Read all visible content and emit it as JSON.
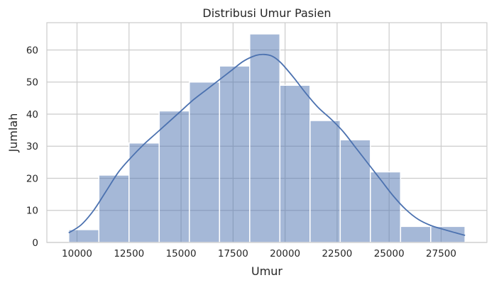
{
  "chart_data": {
    "type": "bar",
    "subtype": "histogram-with-kde",
    "title": "Distribusi Umur Pasien",
    "xlabel": "Umur",
    "ylabel": "Jumlah",
    "xlim": [
      8550,
      29700
    ],
    "ylim": [
      0,
      68.5
    ],
    "xticks": [
      10000,
      12500,
      15000,
      17500,
      20000,
      22500,
      25000,
      27500
    ],
    "yticks": [
      0,
      10,
      20,
      30,
      40,
      50,
      60
    ],
    "grid": true,
    "color": "#4c72b0",
    "bins": [
      {
        "x0": 9600,
        "x1": 11050,
        "count": 4
      },
      {
        "x0": 11050,
        "x1": 12500,
        "count": 21
      },
      {
        "x0": 12500,
        "x1": 13950,
        "count": 31
      },
      {
        "x0": 13950,
        "x1": 15400,
        "count": 41
      },
      {
        "x0": 15400,
        "x1": 16850,
        "count": 50
      },
      {
        "x0": 16850,
        "x1": 18300,
        "count": 55
      },
      {
        "x0": 18300,
        "x1": 19750,
        "count": 65
      },
      {
        "x0": 19750,
        "x1": 21200,
        "count": 49
      },
      {
        "x0": 21200,
        "x1": 22650,
        "count": 38
      },
      {
        "x0": 22650,
        "x1": 24100,
        "count": 32
      },
      {
        "x0": 24100,
        "x1": 25550,
        "count": 22
      },
      {
        "x0": 25550,
        "x1": 27000,
        "count": 5
      },
      {
        "x0": 27000,
        "x1": 28650,
        "count": 5
      }
    ],
    "kde": {
      "x": [
        9600,
        10200,
        10800,
        11400,
        12000,
        12600,
        13200,
        13800,
        14400,
        15000,
        15600,
        16200,
        16800,
        17400,
        18000,
        18600,
        19000,
        19400,
        19800,
        20400,
        21000,
        21600,
        22200,
        22800,
        23400,
        24000,
        24600,
        25200,
        25800,
        26400,
        27000,
        27600,
        28200,
        28650
      ],
      "y": [
        3,
        5.5,
        10,
        16,
        22,
        26.5,
        30.5,
        34,
        37.5,
        41,
        44.5,
        47.5,
        50.5,
        53.5,
        56.5,
        58.3,
        58.6,
        58,
        56,
        51.5,
        46.5,
        42,
        38.5,
        34.5,
        29.5,
        24.5,
        19.5,
        14.5,
        10.3,
        7.2,
        5.3,
        4.1,
        3,
        2.2
      ]
    }
  }
}
